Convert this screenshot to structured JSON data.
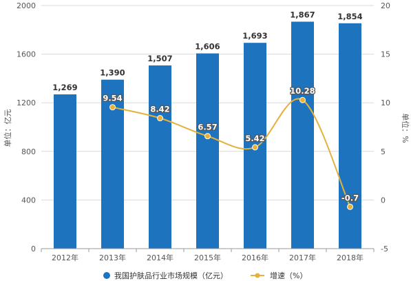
{
  "chart_data": {
    "type": "bar",
    "categories": [
      "2012年",
      "2013年",
      "2014年",
      "2015年",
      "2016年",
      "2017年",
      "2018年"
    ],
    "series": [
      {
        "name": "我国护肤品行业市场规模（亿元）",
        "type": "bar",
        "axis": "left",
        "values": [
          1269,
          1390,
          1507,
          1606,
          1693,
          1867,
          1854
        ],
        "labels": [
          "1,269",
          "1,390",
          "1,507",
          "1,606",
          "1,693",
          "1,867",
          "1,854"
        ]
      },
      {
        "name": "增速（%）",
        "type": "line",
        "axis": "right",
        "values": [
          null,
          9.54,
          8.42,
          6.57,
          5.42,
          10.28,
          -0.7
        ],
        "labels": [
          "",
          "9.54",
          "8.42",
          "6.57",
          "5.42",
          "10.28",
          "-0.7"
        ]
      }
    ],
    "ylabel": "单位：亿元",
    "ylabel_right": "单位：%",
    "ylim": [
      0,
      2000
    ],
    "ylim_right": [
      -5,
      20
    ],
    "yticks": [
      "0",
      "400",
      "800",
      "1200",
      "1600",
      "2000"
    ],
    "yticks_right": [
      "-5",
      "0",
      "5",
      "10",
      "15",
      "20"
    ],
    "grid": true,
    "legend": "bottom",
    "colors": {
      "bar": "#1e73be",
      "line": "#e5b13a",
      "grid": "#d9d9d9"
    }
  }
}
